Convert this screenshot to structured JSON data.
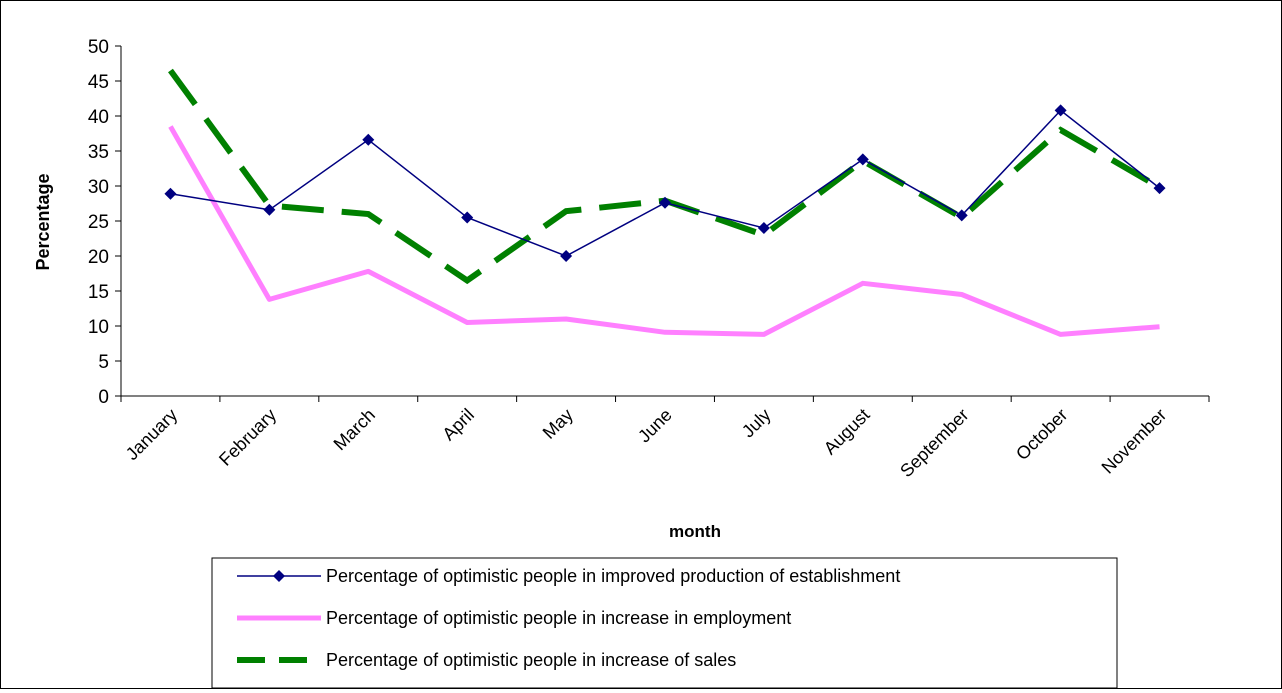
{
  "chart_data": {
    "type": "line",
    "title": "",
    "xlabel": "month",
    "ylabel": "Percentage",
    "ylim": [
      0,
      50
    ],
    "ytick_step": 5,
    "grid": false,
    "legend_position": "bottom",
    "categories": [
      "January",
      "February",
      "March",
      "April",
      "May",
      "June",
      "July",
      "August",
      "September",
      "October",
      "November"
    ],
    "series": [
      {
        "name": "Percentage of optimistic people in improved production of establishment",
        "values": [
          28.9,
          26.6,
          36.6,
          25.5,
          20.0,
          27.6,
          24.0,
          33.8,
          25.8,
          40.8,
          29.7
        ],
        "color": "#000080",
        "style": "solid-diamond"
      },
      {
        "name": "Percentage of optimistic people in increase in employment",
        "values": [
          38.5,
          13.8,
          17.8,
          10.5,
          11.0,
          9.1,
          8.8,
          16.1,
          14.5,
          8.8,
          9.9
        ],
        "color": "#ff80ff",
        "style": "thick-pink"
      },
      {
        "name": "Percentage of optimistic people in increase of sales",
        "values": [
          46.5,
          27.2,
          26.0,
          16.5,
          26.4,
          27.9,
          23.0,
          33.6,
          25.5,
          38.0,
          29.8
        ],
        "color": "#008000",
        "style": "thick-dashed"
      }
    ]
  }
}
